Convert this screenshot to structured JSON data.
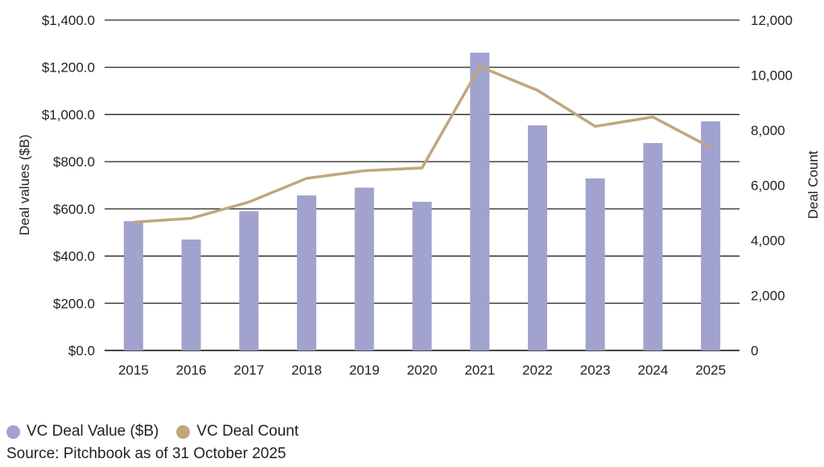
{
  "chart_data": {
    "type": "bar+line",
    "categories": [
      "2015",
      "2016",
      "2017",
      "2018",
      "2019",
      "2020",
      "2021",
      "2022",
      "2023",
      "2024",
      "2025"
    ],
    "series": [
      {
        "name": "VC Deal Value ($B)",
        "type": "bar",
        "axis": "left",
        "color": "#a2a2cf",
        "values": [
          548,
          470,
          590,
          657,
          690,
          630,
          1262,
          954,
          729,
          879,
          971
        ]
      },
      {
        "name": "VC Deal Count",
        "type": "line",
        "axis": "right",
        "color": "#bfa77e",
        "values": [
          4660,
          4800,
          5390,
          6250,
          6530,
          6630,
          10310,
          9450,
          8140,
          8480,
          7370
        ]
      }
    ],
    "ylabel": "Deal values ($B)",
    "y2label": "Deal Count",
    "ylim": [
      0,
      1400
    ],
    "y2lim": [
      0,
      12000
    ],
    "yticks": [
      "$0.0",
      "$200.0",
      "$400.0",
      "$600.0",
      "$800.0",
      "$1,000.0",
      "$1,200.0",
      "$1,400.0"
    ],
    "y2ticks": [
      "0",
      "2,000",
      "4,000",
      "6,000",
      "8,000",
      "10,000",
      "12,000"
    ],
    "grid": true,
    "legend_position": "bottom-left"
  },
  "source": "Source: Pitchbook as of 31 October 2025"
}
